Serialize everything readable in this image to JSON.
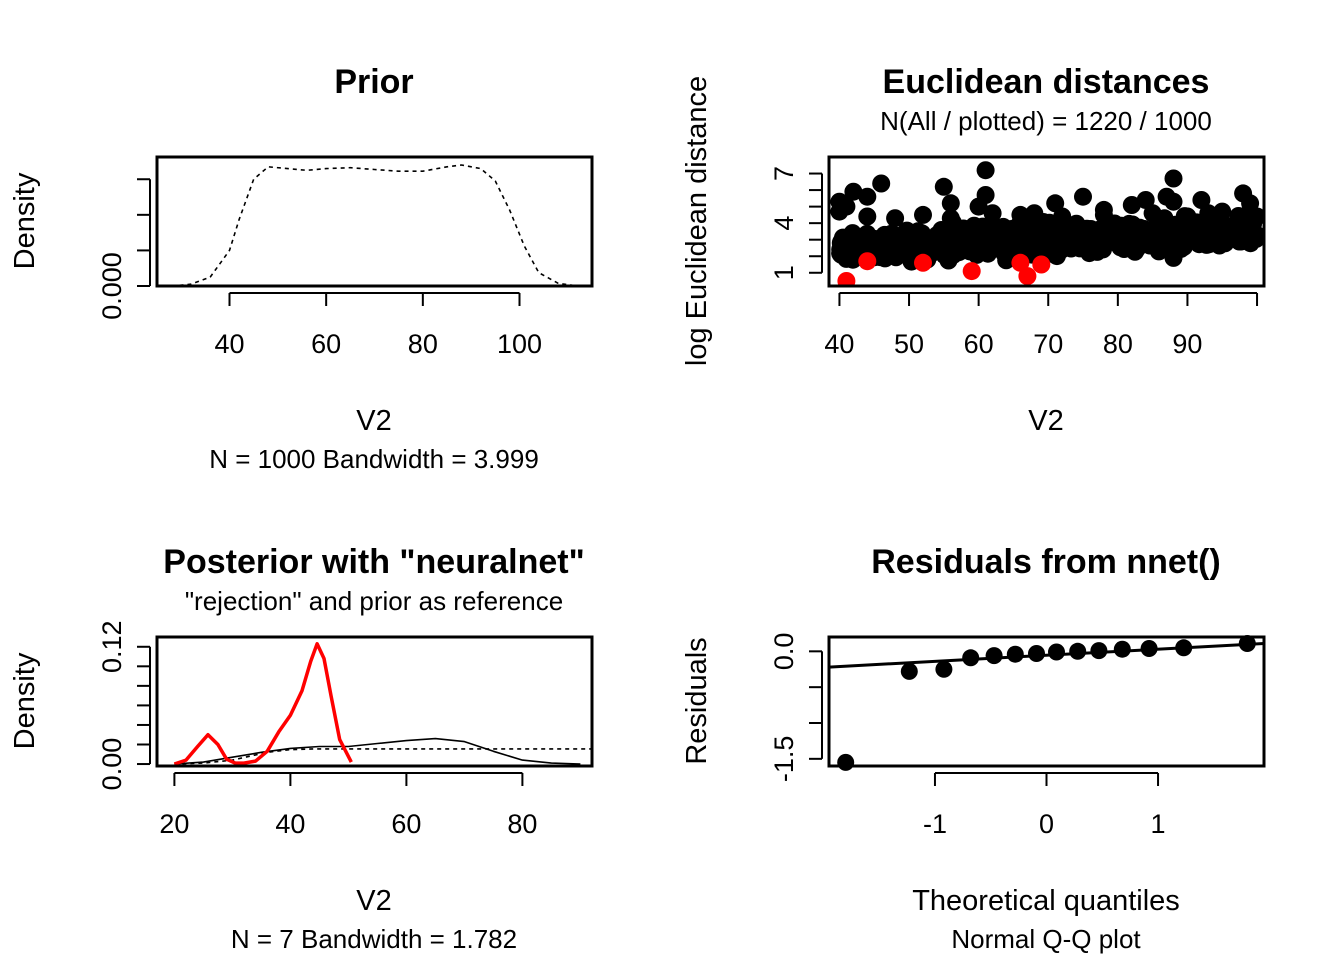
{
  "chart_data": [
    {
      "type": "line",
      "title": "Prior",
      "xlabel": "V2",
      "sub": "N = 1000   Bandwidth = 3.999",
      "ylabel": "Density",
      "xlim": [
        25,
        115
      ],
      "ylim": [
        0,
        0.0145
      ],
      "x_ticks": [
        40,
        60,
        80,
        100
      ],
      "x_tick_labels": [
        "40",
        "60",
        "80",
        "100"
      ],
      "y_ticks": [
        0,
        0.004,
        0.008,
        0.012
      ],
      "y_tick_labels": [
        "0.000",
        "",
        "",
        ""
      ],
      "series": [
        {
          "style": "dashed",
          "color": "#000000",
          "x": [
            28,
            32,
            36,
            40,
            42,
            45,
            48,
            52,
            56,
            60,
            65,
            70,
            75,
            80,
            85,
            88,
            92,
            95,
            98,
            101,
            104,
            108,
            112
          ],
          "y": [
            0.0,
            0.0002,
            0.001,
            0.004,
            0.0075,
            0.012,
            0.0134,
            0.0132,
            0.013,
            0.0132,
            0.0133,
            0.0131,
            0.0129,
            0.0129,
            0.0134,
            0.0136,
            0.0132,
            0.0118,
            0.0085,
            0.0045,
            0.0015,
            0.0003,
            0.0
          ]
        }
      ]
    },
    {
      "type": "scatter",
      "title": "Euclidean distances",
      "subtitle": "N(All / plotted) =  1220 / 1000",
      "xlabel": "V2",
      "ylabel": "log Euclidean distance",
      "xlim": [
        38.5,
        101
      ],
      "ylim": [
        0.2,
        8
      ],
      "x_ticks": [
        40,
        50,
        60,
        70,
        80,
        90,
        100
      ],
      "x_tick_labels": [
        "40",
        "50",
        "60",
        "70",
        "80",
        "90",
        ""
      ],
      "y_ticks": [
        1,
        2,
        3,
        4,
        5,
        6,
        7
      ],
      "y_tick_labels": [
        "1",
        "",
        "",
        "4",
        "",
        "",
        "7"
      ],
      "n_background_points": 1000,
      "series": [
        {
          "color": "#000000",
          "note": "outliers",
          "x": [
            40,
            40,
            41,
            42,
            43,
            46,
            44,
            55,
            56,
            61,
            61,
            60,
            62,
            71,
            75,
            78,
            82,
            84,
            87,
            88,
            88,
            92,
            95,
            98,
            99,
            100,
            88,
            85,
            78,
            66,
            44,
            48,
            52,
            56,
            68,
            72,
            90,
            93
          ],
          "y": [
            5.3,
            4.7,
            5.0,
            5.9,
            2.1,
            6.4,
            5.6,
            6.2,
            5.2,
            7.2,
            5.7,
            5.0,
            4.6,
            5.2,
            5.6,
            4.8,
            5.1,
            5.4,
            5.6,
            6.7,
            5.3,
            5.4,
            4.7,
            5.8,
            5.2,
            4.4,
            1.9,
            4.6,
            4.5,
            4.5,
            4.4,
            4.3,
            4.5,
            4.3,
            4.6,
            4.4,
            4.4,
            4.6
          ]
        },
        {
          "color": "#ff0000",
          "x": [
            41,
            44,
            52,
            59,
            66,
            67,
            69
          ],
          "y": [
            0.5,
            1.7,
            1.6,
            1.1,
            1.6,
            0.8,
            1.5
          ]
        }
      ]
    },
    {
      "type": "line",
      "title": "Posterior with \"neuralnet\"",
      "subtitle": "\"rejection\" and prior as reference",
      "xlabel": "V2",
      "sub": "N = 7   Bandwidth = 1.782",
      "ylabel": "Density",
      "xlim": [
        17,
        92
      ],
      "ylim": [
        -0.002,
        0.13
      ],
      "x_ticks": [
        20,
        40,
        60,
        80
      ],
      "x_tick_labels": [
        "20",
        "40",
        "60",
        "80"
      ],
      "y_ticks": [
        0,
        0.02,
        0.04,
        0.06,
        0.08,
        0.1,
        0.12
      ],
      "y_tick_labels": [
        "0.00",
        "",
        "",
        "",
        "",
        "",
        "0.12"
      ],
      "series": [
        {
          "style": "solid",
          "color": "#000000",
          "x": [
            20,
            25,
            30,
            35,
            40,
            45,
            50,
            55,
            60,
            65,
            70,
            75,
            80,
            85,
            90
          ],
          "y": [
            0,
            0.002,
            0.007,
            0.012,
            0.016,
            0.018,
            0.018,
            0.021,
            0.024,
            0.026,
            0.023,
            0.013,
            0.004,
            0.001,
            0
          ]
        },
        {
          "style": "dashed",
          "color": "#000000",
          "x": [
            20,
            25,
            30,
            33,
            36,
            40,
            44,
            50,
            60,
            70,
            80,
            92
          ],
          "y": [
            0,
            0.001,
            0.004,
            0.008,
            0.012,
            0.0148,
            0.0155,
            0.0155,
            0.0155,
            0.0155,
            0.0155,
            0.0155
          ]
        },
        {
          "style": "solid",
          "color": "#ff0000",
          "x": [
            20,
            22,
            24,
            25.8,
            27.5,
            29,
            30.5,
            32,
            34,
            36,
            38,
            40,
            42,
            43.5,
            44.6,
            45.8,
            47,
            48.5,
            50.5
          ],
          "y": [
            0,
            0.004,
            0.018,
            0.03,
            0.02,
            0.005,
            0.001,
            0.001,
            0.003,
            0.013,
            0.033,
            0.05,
            0.075,
            0.105,
            0.123,
            0.108,
            0.07,
            0.025,
            0.002
          ]
        }
      ]
    },
    {
      "type": "scatter",
      "title": "Residuals from nnet()",
      "xlabel": "Theoretical quantiles",
      "sub": "Normal Q-Q plot",
      "ylabel": "Residuals",
      "xlim": [
        -1.95,
        1.95
      ],
      "ylim": [
        -1.6,
        0.2
      ],
      "x_ticks": [
        -1,
        0,
        1
      ],
      "x_tick_labels": [
        "-1",
        "0",
        "1"
      ],
      "y_ticks": [
        0,
        -0.5,
        -1,
        -1.5
      ],
      "y_tick_labels": [
        "0.0",
        "",
        "",
        "-1.5"
      ],
      "points": {
        "x": [
          -1.8,
          -1.23,
          -0.92,
          -0.68,
          -0.47,
          -0.28,
          -0.09,
          0.09,
          0.28,
          0.47,
          0.68,
          0.92,
          1.23,
          1.8
        ],
        "y": [
          -1.55,
          -0.28,
          -0.25,
          -0.09,
          -0.06,
          -0.04,
          -0.03,
          -0.01,
          0.0,
          0.01,
          0.03,
          0.04,
          0.05,
          0.11
        ]
      },
      "line": {
        "x": [
          -1.95,
          1.95
        ],
        "y": [
          -0.22,
          0.11
        ]
      }
    }
  ]
}
